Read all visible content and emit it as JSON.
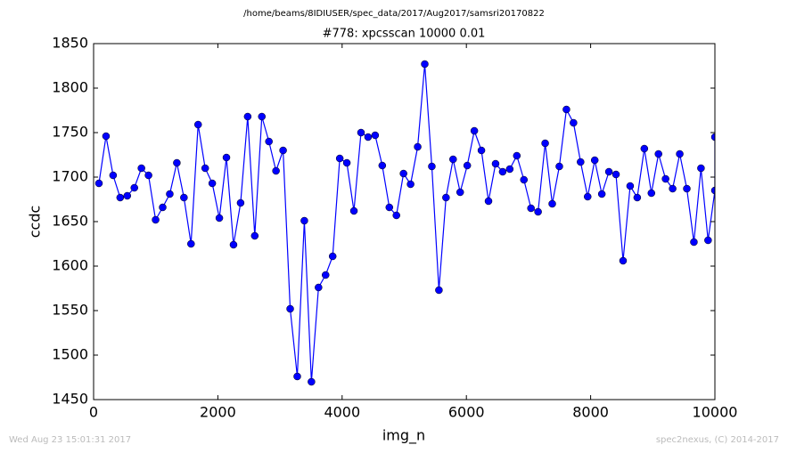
{
  "chart_data": {
    "type": "line",
    "suptitle": "/home/beams/8IDIUSER/spec_data/2017/Aug2017/samsri20170822",
    "title": "#778: xpcsscan 10000 0.01",
    "xlabel": "img_n",
    "ylabel": "ccdc",
    "footer_left": "Wed Aug 23 15:01:31 2017",
    "footer_right": "spec2nexus, (C) 2014-2017",
    "x": [
      86,
      200,
      314,
      428,
      542,
      656,
      770,
      884,
      998,
      1112,
      1226,
      1340,
      1454,
      1568,
      1682,
      1796,
      1910,
      2024,
      2138,
      2252,
      2366,
      2480,
      2594,
      2708,
      2822,
      2936,
      3050,
      3164,
      3278,
      3392,
      3506,
      3620,
      3734,
      3848,
      3962,
      4076,
      4190,
      4304,
      4418,
      4532,
      4646,
      4760,
      4874,
      4988,
      5102,
      5216,
      5330,
      5444,
      5558,
      5672,
      5786,
      5900,
      6014,
      6128,
      6242,
      6356,
      6470,
      6584,
      6698,
      6812,
      6926,
      7040,
      7154,
      7268,
      7382,
      7496,
      7610,
      7724,
      7838,
      7952,
      8066,
      8180,
      8294,
      8408,
      8522,
      8636,
      8750,
      8864,
      8978,
      9092,
      9206,
      9320,
      9434,
      9548,
      9662,
      9776,
      9890,
      10000,
      10000
    ],
    "series": [
      {
        "name": "ccdc",
        "color": "#0000ff",
        "values": [
          1693,
          1746,
          1702,
          1677,
          1679,
          1688,
          1710,
          1702,
          1652,
          1666,
          1681,
          1716,
          1677,
          1625,
          1759,
          1710,
          1693,
          1654,
          1722,
          1624,
          1671,
          1768,
          1634,
          1768,
          1740,
          1707,
          1730,
          1552,
          1476,
          1651,
          1470,
          1576,
          1590,
          1611,
          1721,
          1716,
          1662,
          1750,
          1745,
          1747,
          1713,
          1666,
          1657,
          1704,
          1692,
          1734,
          1827,
          1712,
          1573,
          1677,
          1720,
          1683,
          1713,
          1752,
          1730,
          1673,
          1715,
          1706,
          1709,
          1724,
          1697,
          1665,
          1661,
          1738,
          1670,
          1712,
          1776,
          1761,
          1717,
          1678,
          1719,
          1681,
          1706,
          1703,
          1606,
          1690,
          1677,
          1732,
          1682,
          1726,
          1698,
          1687,
          1726,
          1687,
          1627,
          1710,
          1629,
          1685,
          1745
        ]
      }
    ],
    "xlim": [
      0,
      10000
    ],
    "ylim": [
      1450,
      1850
    ],
    "xticks": [
      0,
      2000,
      4000,
      6000,
      8000,
      10000
    ],
    "yticks": [
      1450,
      1500,
      1550,
      1600,
      1650,
      1700,
      1750,
      1800,
      1850
    ]
  }
}
